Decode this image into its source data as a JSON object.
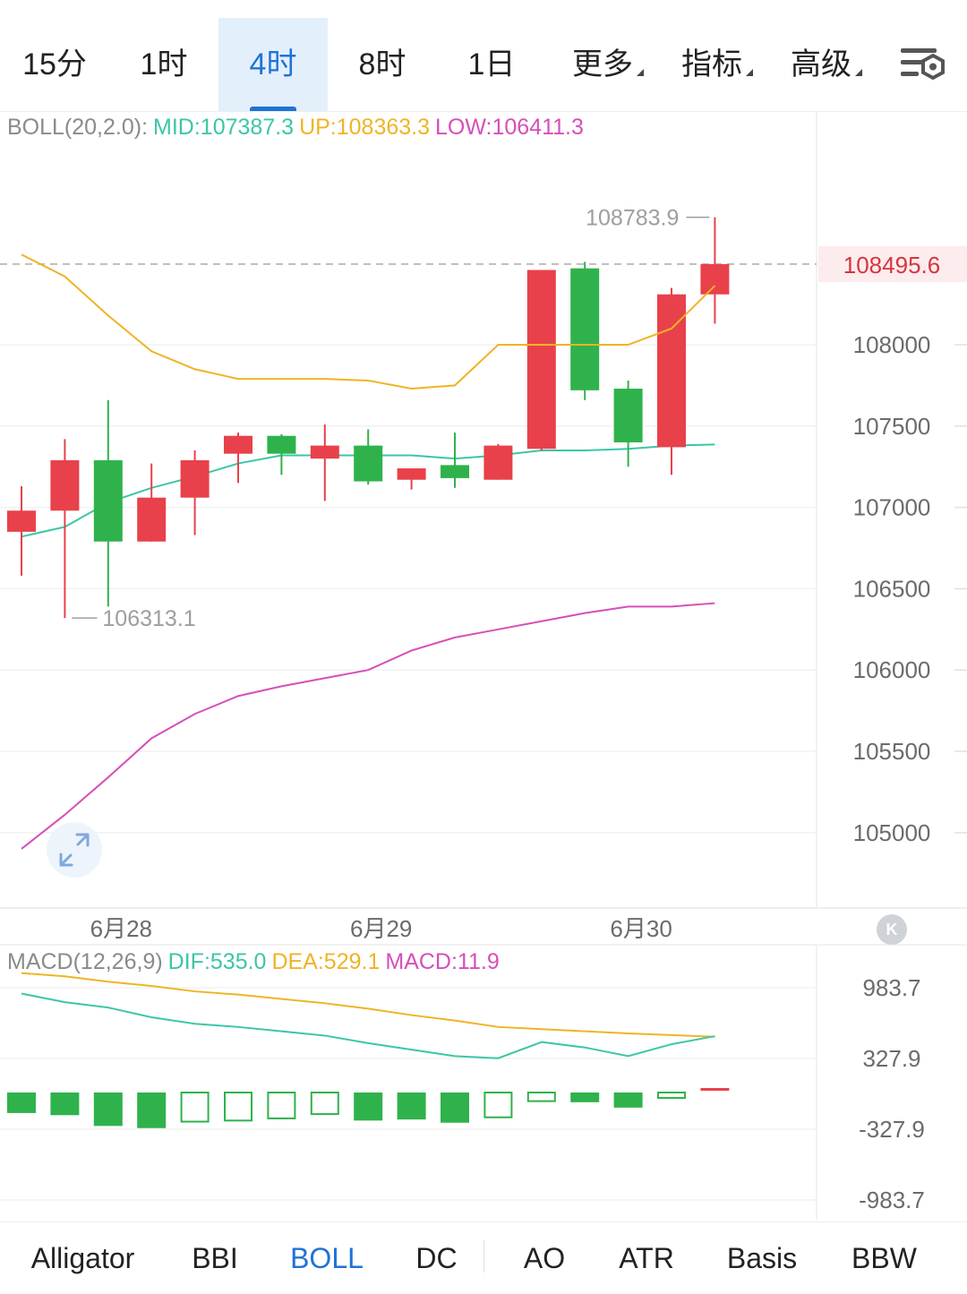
{
  "timeframe_tabs": [
    {
      "label": "15分",
      "active": false,
      "dropdown": false
    },
    {
      "label": "1时",
      "active": false,
      "dropdown": false
    },
    {
      "label": "4时",
      "active": true,
      "dropdown": false
    },
    {
      "label": "8时",
      "active": false,
      "dropdown": false
    },
    {
      "label": "1日",
      "active": false,
      "dropdown": false
    },
    {
      "label": "更多",
      "active": false,
      "dropdown": true
    },
    {
      "label": "指标",
      "active": false,
      "dropdown": true
    },
    {
      "label": "高级",
      "active": false,
      "dropdown": true
    }
  ],
  "settings_icon": "chart-settings-icon",
  "boll_legend": {
    "name": "BOLL(20,2.0):",
    "mid": "MID:107387.3",
    "up": "UP:108363.3",
    "low": "LOW:106411.3"
  },
  "macd_legend": {
    "name": "MACD(12,26,9)",
    "dif": "DIF:535.0",
    "dea": "DEA:529.1",
    "macd": "MACD:11.9"
  },
  "current_price_label": "108495.6",
  "high_label": "108783.9",
  "low_label": "106313.1",
  "colors": {
    "up": "#e8414b",
    "down": "#2fb24c",
    "mid": "#3cc6a6",
    "upper": "#efb425",
    "lower": "#d64fb8",
    "accent": "#1f73d6",
    "axis_text": "#6b6b6b"
  },
  "chart_data": {
    "type": "candlestick",
    "price_axis": {
      "ticks": [
        108000,
        107500,
        107000,
        106500,
        106000,
        105500,
        105000
      ],
      "tick_labels": [
        "108000",
        "107500",
        "107000",
        "106500",
        "106000",
        "105500",
        "105000"
      ]
    },
    "date_labels": [
      "6月28",
      "6月29",
      "6月30"
    ],
    "date_label_candle_index": [
      2.3,
      8.3,
      14.3
    ],
    "candles": [
      {
        "open": 106850,
        "high": 107130,
        "low": 106580,
        "close": 106980
      },
      {
        "open": 106980,
        "high": 107420,
        "low": 106320,
        "close": 107290
      },
      {
        "open": 107290,
        "high": 107660,
        "low": 106390,
        "close": 106790
      },
      {
        "open": 106790,
        "high": 107270,
        "low": 106790,
        "close": 107060
      },
      {
        "open": 107060,
        "high": 107350,
        "low": 106830,
        "close": 107290
      },
      {
        "open": 107330,
        "high": 107460,
        "low": 107150,
        "close": 107440
      },
      {
        "open": 107440,
        "high": 107450,
        "low": 107200,
        "close": 107330
      },
      {
        "open": 107300,
        "high": 107510,
        "low": 107040,
        "close": 107380
      },
      {
        "open": 107380,
        "high": 107480,
        "low": 107140,
        "close": 107160
      },
      {
        "open": 107170,
        "high": 107240,
        "low": 107110,
        "close": 107240
      },
      {
        "open": 107260,
        "high": 107460,
        "low": 107120,
        "close": 107180
      },
      {
        "open": 107170,
        "high": 107390,
        "low": 107170,
        "close": 107380
      },
      {
        "open": 107360,
        "high": 108460,
        "low": 107350,
        "close": 108460
      },
      {
        "open": 108470,
        "high": 108510,
        "low": 107660,
        "close": 107720
      },
      {
        "open": 107730,
        "high": 107780,
        "low": 107250,
        "close": 107400
      },
      {
        "open": 107370,
        "high": 108350,
        "low": 107200,
        "close": 108310
      },
      {
        "open": 108310,
        "high": 108784,
        "low": 108130,
        "close": 108496
      }
    ],
    "boll": {
      "upper": [
        108555,
        108420,
        108180,
        107960,
        107850,
        107790,
        107790,
        107790,
        107780,
        107730,
        107750,
        108000,
        108000,
        108000,
        108000,
        108100,
        108363
      ],
      "mid": [
        106820,
        106880,
        107030,
        107120,
        107190,
        107270,
        107320,
        107320,
        107320,
        107320,
        107300,
        107320,
        107350,
        107350,
        107360,
        107380,
        107387
      ],
      "lower": [
        104900,
        105110,
        105340,
        105580,
        105730,
        105840,
        105900,
        105950,
        106000,
        106120,
        106200,
        106250,
        106300,
        106350,
        106390,
        106390,
        106411
      ]
    },
    "macd_axis": {
      "ticks": [
        983.7,
        327.9,
        -327.9,
        -983.7
      ],
      "tick_labels": [
        "983.7",
        "327.9",
        "-327.9",
        "-983.7"
      ]
    },
    "macd": {
      "dif": [
        930,
        850,
        800,
        710,
        650,
        620,
        580,
        540,
        470,
        410,
        350,
        330,
        480,
        430,
        350,
        460,
        535
      ],
      "dea": [
        1120,
        1090,
        1040,
        1000,
        950,
        920,
        880,
        840,
        790,
        730,
        680,
        620,
        600,
        580,
        560,
        545,
        529
      ],
      "histogram": [
        -190,
        -210,
        -310,
        -330,
        -270,
        -260,
        -240,
        -200,
        -260,
        -250,
        -280,
        -230,
        -80,
        -90,
        -140,
        -50,
        12
      ],
      "hollow": [
        false,
        false,
        false,
        false,
        true,
        true,
        true,
        true,
        false,
        false,
        false,
        true,
        true,
        false,
        false,
        true,
        false
      ]
    }
  },
  "bottom_tabs": [
    {
      "label": "Alligator",
      "active": false
    },
    {
      "label": "BBI",
      "active": false
    },
    {
      "label": "BOLL",
      "active": true
    },
    {
      "label": "DC",
      "active": false
    },
    {
      "label": "AO",
      "active": false
    },
    {
      "label": "ATR",
      "active": false
    },
    {
      "label": "Basis",
      "active": false
    },
    {
      "label": "BBW",
      "active": false
    }
  ],
  "k_badge": "K"
}
